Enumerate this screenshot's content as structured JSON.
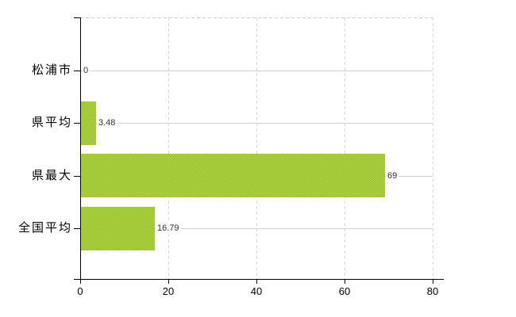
{
  "chart_data": {
    "type": "bar",
    "orientation": "horizontal",
    "title": "",
    "xlabel": "",
    "ylabel": "",
    "categories": [
      "松浦市",
      "県平均",
      "県最大",
      "全国平均"
    ],
    "values": [
      0,
      3.48,
      69,
      16.79
    ],
    "value_labels": [
      "0",
      "3.48",
      "69",
      "16.79"
    ],
    "xlim": [
      0,
      80
    ],
    "xticks": [
      0,
      20,
      40,
      60,
      80
    ],
    "xtick_labels": [
      "0",
      "20",
      "40",
      "60",
      "80"
    ],
    "legend": "none",
    "grid": {
      "vertical": "dashed",
      "horizontal_row_lines": "solid",
      "top_border": "dashed"
    },
    "colors": {
      "bar_base": "#b3d548",
      "bar_texture_dot": "#96bf2b",
      "row_gridline": "#ccd4cc",
      "vertical_gridline": "#d9d9d9",
      "top_border": "#d5cfd5",
      "axis": "#000000",
      "value_text": "#333333",
      "label_text": "#000000",
      "background": "#ffffff"
    }
  }
}
